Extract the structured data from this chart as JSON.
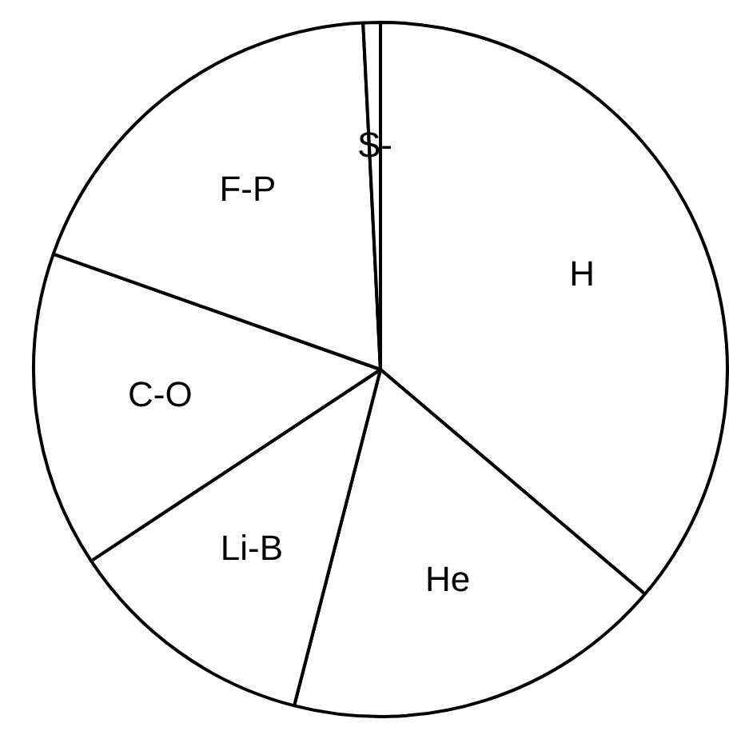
{
  "chart_data": {
    "type": "pie",
    "categories": [
      "H",
      "He",
      "Li-B",
      "C-O",
      "F-P",
      "S-"
    ],
    "values": [
      36.2,
      17.8,
      11.7,
      14.7,
      18.8,
      0.8
    ],
    "colors": [
      "#ffffff",
      "#ffffff",
      "#ffffff",
      "#ffffff",
      "#ffffff",
      "#ffffff"
    ],
    "legend": false
  }
}
